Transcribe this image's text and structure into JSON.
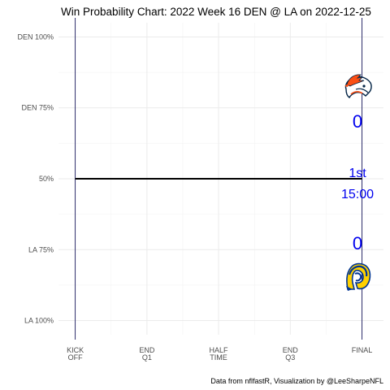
{
  "chart_data": {
    "type": "line",
    "title": "Win Probability Chart: 2022 Week 16 DEN @ LA on 2022-12-25",
    "caption": "Data from nflfastR, Visualization by @LeeSharpeNFL",
    "y_ticks": [
      {
        "value": 1.0,
        "label": "DEN 100%"
      },
      {
        "value": 0.75,
        "label": "DEN 75%"
      },
      {
        "value": 0.5,
        "label": "50%"
      },
      {
        "value": 0.25,
        "label": "LA 75%"
      },
      {
        "value": 0.0,
        "label": "LA 100%"
      }
    ],
    "x_ticks": [
      {
        "value": 0,
        "line1": "KICK",
        "line2": "OFF"
      },
      {
        "value": 900,
        "line1": "END",
        "line2": "Q1"
      },
      {
        "value": 1800,
        "line1": "HALF",
        "line2": "TIME"
      },
      {
        "value": 2700,
        "line1": "END",
        "line2": "Q3"
      },
      {
        "value": 3600,
        "line1": "FINAL",
        "line2": ""
      }
    ],
    "xlim": [
      -210,
      3870
    ],
    "ylim": [
      -0.05,
      1.05
    ],
    "series": [
      {
        "x": [
          0,
          3600
        ],
        "y": [
          0.5,
          0.5
        ],
        "color": "#000000"
      }
    ],
    "vlines": [
      0,
      3600
    ],
    "vline_color": "#1a1a5e",
    "grid": true,
    "annotations": {
      "away_score": "0",
      "home_score": "0",
      "quarter": "1st",
      "clock": "15:00",
      "color": "#0000ee"
    },
    "logos": {
      "away": "broncos-logo",
      "home": "rams-logo",
      "away_colors": [
        "#fb4f14",
        "#002244"
      ],
      "home_colors": [
        "#003594",
        "#ffd100"
      ]
    }
  }
}
